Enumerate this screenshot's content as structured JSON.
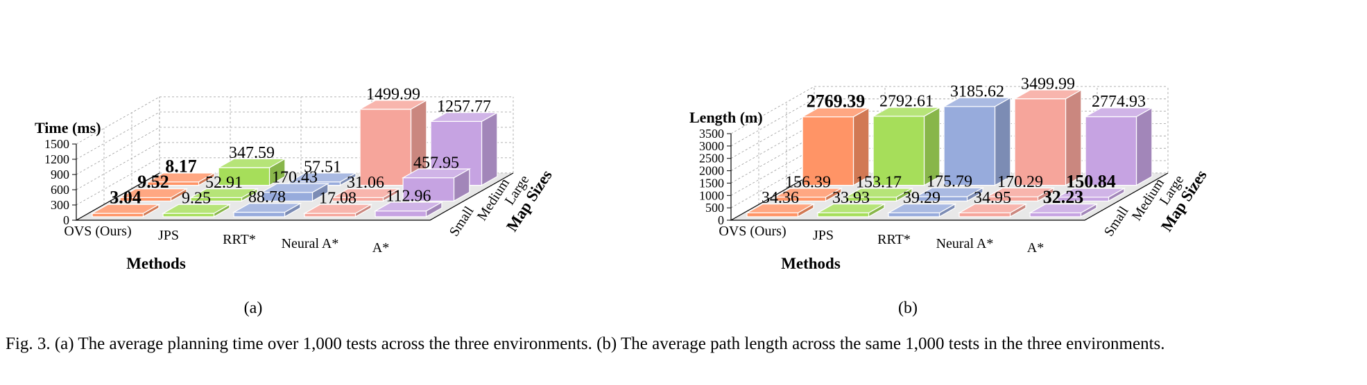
{
  "caption": "Fig. 3.  (a) The average planning time over 1,000 tests across the three environments. (b) The average path length across the same 1,000 tests in the three environments.",
  "colors": {
    "OVS (Ours)": "#ff9466",
    "JPS": "#a6de5a",
    "RRT*": "#97abdc",
    "Neural A*": "#f6a59b",
    "A*": "#c6a3e2",
    "floor": "#e8e8e8",
    "grid": "#9a9a9a"
  },
  "chart_data": [
    {
      "type": "bar",
      "panel_label": "(a)",
      "zlabel": "Time (ms)",
      "xlabel": "Methods",
      "ylabel": "Map Sizes",
      "zlim": [
        0,
        1500
      ],
      "zticks": [
        "0",
        "300",
        "600",
        "900",
        "1200",
        "1500"
      ],
      "categories": [
        "OVS (Ours)",
        "JPS",
        "RRT*",
        "Neural A*",
        "A*"
      ],
      "map_sizes": [
        "Small",
        "Medium",
        "Large"
      ],
      "series": [
        {
          "name": "Small",
          "values": [
            3.04,
            9.25,
            88.78,
            17.08,
            112.96
          ],
          "labels": [
            "3.04",
            "9.25",
            "88.78",
            "17.08",
            "112.96"
          ],
          "bold": [
            true,
            false,
            false,
            false,
            false
          ]
        },
        {
          "name": "Medium",
          "values": [
            9.52,
            52.91,
            170.43,
            31.06,
            457.95
          ],
          "labels": [
            "9.52",
            "52.91",
            "170.43",
            "31.06",
            "457.95"
          ],
          "bold": [
            true,
            false,
            false,
            false,
            false
          ]
        },
        {
          "name": "Large",
          "values": [
            8.17,
            347.59,
            57.51,
            1499.99,
            1257.77
          ],
          "labels": [
            "8.17",
            "347.59",
            "57.51",
            "1499.99",
            "1257.77"
          ],
          "bold": [
            true,
            false,
            false,
            false,
            false
          ]
        }
      ]
    },
    {
      "type": "bar",
      "panel_label": "(b)",
      "zlabel": "Length (m)",
      "xlabel": "Methods",
      "ylabel": "Map Sizes",
      "zlim": [
        0,
        3500
      ],
      "zticks": [
        "0",
        "500",
        "1000",
        "1500",
        "2000",
        "2500",
        "3000",
        "3500"
      ],
      "categories": [
        "OVS (Ours)",
        "JPS",
        "RRT*",
        "Neural A*",
        "A*"
      ],
      "map_sizes": [
        "Small",
        "Medium",
        "Large"
      ],
      "series": [
        {
          "name": "Small",
          "values": [
            34.36,
            33.93,
            39.29,
            34.95,
            32.23
          ],
          "labels": [
            "34.36",
            "33.93",
            "39.29",
            "34.95",
            "32.23"
          ],
          "bold": [
            false,
            false,
            false,
            false,
            true
          ]
        },
        {
          "name": "Medium",
          "values": [
            156.39,
            153.17,
            175.79,
            170.29,
            150.84
          ],
          "labels": [
            "156.39",
            "153.17",
            "175.79",
            "170.29",
            "150.84"
          ],
          "bold": [
            false,
            false,
            false,
            false,
            true
          ]
        },
        {
          "name": "Large",
          "values": [
            2769.39,
            2792.61,
            3185.62,
            3499.99,
            2774.93
          ],
          "labels": [
            "2769.39",
            "2792.61",
            "3185.62",
            "3499.99",
            "2774.93"
          ],
          "bold": [
            true,
            false,
            false,
            false,
            false
          ]
        }
      ]
    }
  ]
}
